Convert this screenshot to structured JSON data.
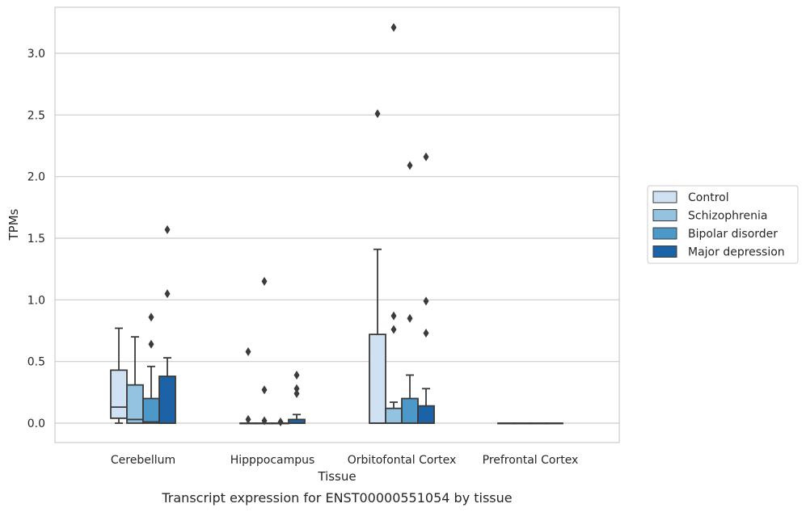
{
  "chart_data": {
    "type": "box",
    "title": "Transcript expression for ENST00000551054 by tissue",
    "xlabel": "Tissue",
    "ylabel": "TPMs",
    "ylim": [
      -0.16,
      3.37
    ],
    "yticks": [
      "0.0",
      "0.5",
      "1.0",
      "1.5",
      "2.0",
      "2.5",
      "3.0"
    ],
    "grid": true,
    "legend_position": "right",
    "categories": [
      "Cerebellum",
      "Hipppocampus",
      "Orbitofontal Cortex",
      "Prefrontal Cortex"
    ],
    "series": [
      {
        "name": "Control",
        "color": "#cfe1f2",
        "boxes": [
          {
            "min": 0.0,
            "q1": 0.04,
            "median": 0.13,
            "q3": 0.43,
            "max": 0.77,
            "outliers": []
          },
          {
            "min": 0.0,
            "q1": 0.0,
            "median": 0.0,
            "q3": 0.0,
            "max": 0.0,
            "outliers": [
              0.03,
              0.58
            ]
          },
          {
            "min": 0.0,
            "q1": 0.0,
            "median": 0.0,
            "q3": 0.72,
            "max": 1.41,
            "outliers": [
              2.51
            ]
          },
          {
            "min": 0.0,
            "q1": 0.0,
            "median": 0.0,
            "q3": 0.0,
            "max": 0.0,
            "outliers": []
          }
        ]
      },
      {
        "name": "Schizophrenia",
        "color": "#93c3df",
        "boxes": [
          {
            "min": 0.0,
            "q1": 0.0,
            "median": 0.03,
            "q3": 0.31,
            "max": 0.7,
            "outliers": []
          },
          {
            "min": 0.0,
            "q1": 0.0,
            "median": 0.0,
            "q3": 0.0,
            "max": 0.0,
            "outliers": [
              0.02,
              0.27,
              1.15
            ]
          },
          {
            "min": 0.0,
            "q1": 0.0,
            "median": 0.0,
            "q3": 0.12,
            "max": 0.17,
            "outliers": [
              0.76,
              0.87,
              3.21
            ]
          },
          {
            "min": 0.0,
            "q1": 0.0,
            "median": 0.0,
            "q3": 0.0,
            "max": 0.0,
            "outliers": []
          }
        ]
      },
      {
        "name": "Bipolar disorder",
        "color": "#4b98c9",
        "boxes": [
          {
            "min": 0.0,
            "q1": 0.0,
            "median": 0.01,
            "q3": 0.2,
            "max": 0.46,
            "outliers": [
              0.64,
              0.86
            ]
          },
          {
            "min": 0.0,
            "q1": 0.0,
            "median": 0.0,
            "q3": 0.0,
            "max": 0.0,
            "outliers": [
              0.01
            ]
          },
          {
            "min": 0.0,
            "q1": 0.0,
            "median": 0.0,
            "q3": 0.2,
            "max": 0.39,
            "outliers": [
              0.85,
              2.09
            ]
          },
          {
            "min": 0.0,
            "q1": 0.0,
            "median": 0.0,
            "q3": 0.0,
            "max": 0.0,
            "outliers": []
          }
        ]
      },
      {
        "name": "Major depression",
        "color": "#1c62a6",
        "boxes": [
          {
            "min": 0.0,
            "q1": 0.0,
            "median": 0.0,
            "q3": 0.38,
            "max": 0.53,
            "outliers": [
              1.05,
              1.57
            ]
          },
          {
            "min": 0.0,
            "q1": 0.0,
            "median": 0.0,
            "q3": 0.03,
            "max": 0.07,
            "outliers": [
              0.24,
              0.28,
              0.39
            ]
          },
          {
            "min": 0.0,
            "q1": 0.0,
            "median": 0.0,
            "q3": 0.14,
            "max": 0.28,
            "outliers": [
              0.73,
              0.99,
              2.16
            ]
          },
          {
            "min": 0.0,
            "q1": 0.0,
            "median": 0.0,
            "q3": 0.0,
            "max": 0.0,
            "outliers": []
          }
        ]
      }
    ]
  }
}
